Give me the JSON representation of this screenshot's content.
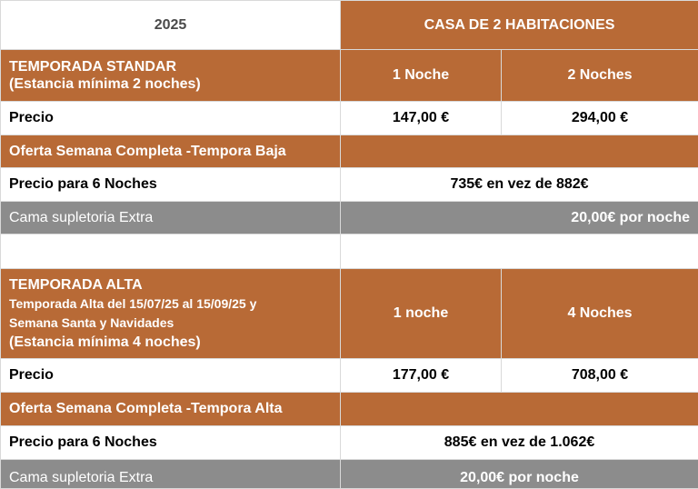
{
  "year": "2025",
  "house_title": "CASA DE 2 HABITACIONES",
  "standard": {
    "title": "TEMPORADA STANDAR",
    "min_stay": "(Estancia mínima 2 noches)",
    "col1": "1 Noche",
    "col2": "2 Noches",
    "price_label": "Precio",
    "price1": "147,00 €",
    "price2": "294,00 €",
    "offer_title": "Oferta Semana Completa -Tempora Baja",
    "offer_label": "Precio para 6 Noches",
    "offer_value": "735€ en vez de 882€",
    "extra_label": "Cama supletoria Extra",
    "extra_value": "20,00€ por noche"
  },
  "high": {
    "title": "TEMPORADA ALTA",
    "dates_line1": "Temporada Alta del 15/07/25 al 15/09/25 y",
    "dates_line2": "Semana Santa y Navidades",
    "min_stay": "(Estancia mínima 4 noches)",
    "col1": "1 noche",
    "col2": "4 Noches",
    "price_label": "Precio",
    "price1": "177,00 €",
    "price2": "708,00 €",
    "offer_title": "Oferta Semana Completa -Tempora Alta",
    "offer_label": "Precio para 6 Noches",
    "offer_value": "885€ en vez de 1.062€",
    "extra_label": "Cama supletoria Extra",
    "extra_value": "20,00€ por noche"
  }
}
